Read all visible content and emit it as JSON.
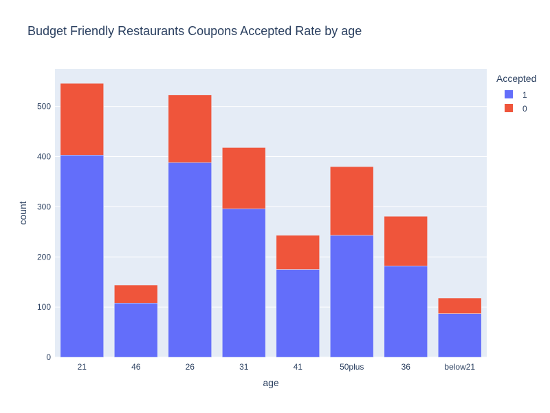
{
  "chart_data": {
    "type": "bar",
    "stacked": true,
    "title": "Budget Friendly Restaurants Coupons Accepted Rate by age",
    "xlabel": "age",
    "ylabel": "count",
    "categories": [
      "21",
      "46",
      "26",
      "31",
      "41",
      "50plus",
      "36",
      "below21"
    ],
    "series": [
      {
        "name": "1",
        "color": "#636efa",
        "values": [
          403,
          108,
          388,
          296,
          175,
          243,
          182,
          87
        ]
      },
      {
        "name": "0",
        "color": "#ef553b",
        "values": [
          143,
          36,
          135,
          122,
          68,
          137,
          99,
          31
        ]
      }
    ],
    "ylim": [
      0,
      575
    ],
    "yticks": [
      0,
      100,
      200,
      300,
      400,
      500
    ],
    "ytick_labels": [
      "0",
      "100",
      "200",
      "300",
      "400",
      "500"
    ],
    "grid": true,
    "legend": {
      "title": "Accepted",
      "placement": "top-right"
    },
    "plot_background": "#e5ecf6",
    "grid_color": "#ffffff"
  }
}
